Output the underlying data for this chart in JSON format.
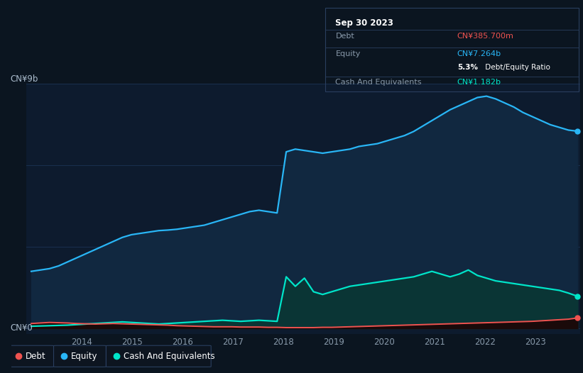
{
  "bg_color": "#0b1520",
  "plot_bg_color": "#0d1b2e",
  "grid_color": "#1a3050",
  "title_label": "CN¥9b",
  "zero_label": "CN¥0",
  "equity_color": "#29b6f6",
  "equity_fill": "#112840",
  "cash_color": "#00e5c9",
  "cash_fill": "#0a3535",
  "debt_color": "#ef5350",
  "debt_fill": "#1a0a0a",
  "legend_bg": "#0d1520",
  "legend_border": "#2a3f5f",
  "tooltip_bg": "#060d14",
  "tooltip_border": "#2a3f5f",
  "tooltip_title": "Sep 30 2023",
  "tooltip_debt_label": "Debt",
  "tooltip_debt_value": "CN¥385.700m",
  "tooltip_equity_label": "Equity",
  "tooltip_equity_value": "CN¥7.264b",
  "tooltip_ratio": "5.3% Debt/Equity Ratio",
  "tooltip_ratio_bold": "5.3%",
  "tooltip_cash_label": "Cash And Equivalents",
  "tooltip_cash_value": "CN¥1.182b",
  "equity_data": [
    2.1,
    2.15,
    2.2,
    2.3,
    2.45,
    2.6,
    2.75,
    2.9,
    3.05,
    3.2,
    3.35,
    3.45,
    3.5,
    3.55,
    3.6,
    3.62,
    3.65,
    3.7,
    3.75,
    3.8,
    3.9,
    4.0,
    4.1,
    4.2,
    4.3,
    4.35,
    4.3,
    4.25,
    6.5,
    6.6,
    6.55,
    6.5,
    6.45,
    6.5,
    6.55,
    6.6,
    6.7,
    6.75,
    6.8,
    6.9,
    7.0,
    7.1,
    7.25,
    7.45,
    7.65,
    7.85,
    8.05,
    8.2,
    8.35,
    8.5,
    8.55,
    8.45,
    8.3,
    8.15,
    7.95,
    7.8,
    7.65,
    7.5,
    7.4,
    7.3,
    7.26
  ],
  "cash_data": [
    0.08,
    0.09,
    0.1,
    0.11,
    0.12,
    0.14,
    0.16,
    0.18,
    0.2,
    0.22,
    0.24,
    0.22,
    0.2,
    0.18,
    0.16,
    0.18,
    0.2,
    0.22,
    0.24,
    0.26,
    0.28,
    0.3,
    0.28,
    0.26,
    0.28,
    0.3,
    0.28,
    0.26,
    1.9,
    1.55,
    1.85,
    1.35,
    1.25,
    1.35,
    1.45,
    1.55,
    1.6,
    1.65,
    1.7,
    1.75,
    1.8,
    1.85,
    1.9,
    2.0,
    2.1,
    2.0,
    1.9,
    2.0,
    2.15,
    1.95,
    1.85,
    1.75,
    1.7,
    1.65,
    1.6,
    1.55,
    1.5,
    1.45,
    1.4,
    1.3,
    1.182
  ],
  "debt_data": [
    0.18,
    0.2,
    0.22,
    0.21,
    0.2,
    0.18,
    0.17,
    0.16,
    0.17,
    0.18,
    0.17,
    0.16,
    0.15,
    0.14,
    0.13,
    0.12,
    0.1,
    0.09,
    0.08,
    0.07,
    0.06,
    0.06,
    0.06,
    0.05,
    0.05,
    0.05,
    0.04,
    0.04,
    0.03,
    0.03,
    0.03,
    0.03,
    0.04,
    0.04,
    0.05,
    0.06,
    0.07,
    0.08,
    0.09,
    0.1,
    0.11,
    0.12,
    0.13,
    0.14,
    0.15,
    0.16,
    0.17,
    0.18,
    0.19,
    0.2,
    0.21,
    0.22,
    0.23,
    0.24,
    0.25,
    0.26,
    0.28,
    0.3,
    0.32,
    0.34,
    0.3857
  ],
  "n_points": 61,
  "year_start": 2013.0,
  "year_end": 2023.83,
  "ylim_max": 9.0,
  "ylim_min": -0.2,
  "x_tick_years": [
    2014,
    2015,
    2016,
    2017,
    2018,
    2019,
    2020,
    2021,
    2022,
    2023
  ]
}
